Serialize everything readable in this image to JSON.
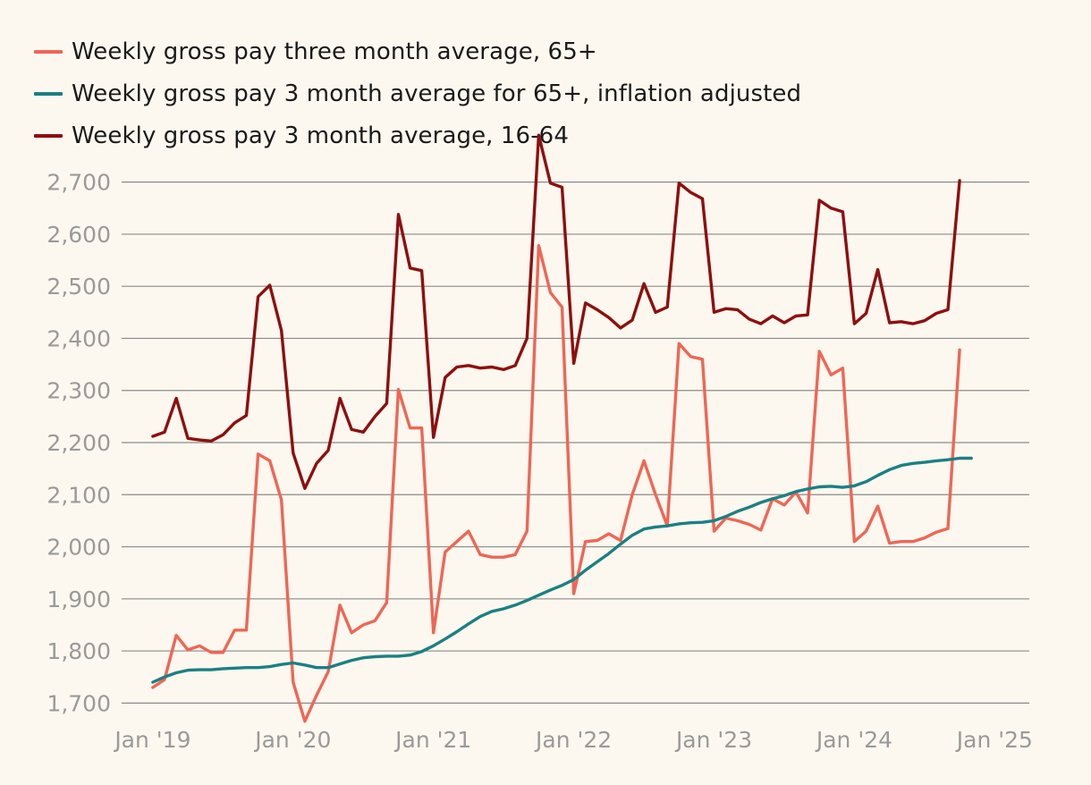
{
  "chart_data": {
    "type": "line",
    "title": "",
    "xlabel": "",
    "ylabel": "",
    "x_tick_labels": [
      "Jan '19",
      "Jan '20",
      "Jan '21",
      "Jan '22",
      "Jan '23",
      "Jan '24",
      "Jan '25"
    ],
    "x_tick_values": [
      2019,
      2020,
      2021,
      2022,
      2023,
      2024,
      2025
    ],
    "x_start": 2019.0,
    "x_step": 0.083333,
    "xlim": [
      2018.58,
      2025.24
    ],
    "y_ticks": [
      1700,
      1800,
      1900,
      2000,
      2100,
      2200,
      2300,
      2400,
      2500,
      2600,
      2700
    ],
    "y_tick_labels": [
      "1,700",
      "1,800",
      "1,900",
      "2,000",
      "2,100",
      "2,200",
      "2,300",
      "2,400",
      "2,500",
      "2,600",
      "2,700"
    ],
    "ylim": [
      1680,
      2720
    ],
    "grid": true,
    "legend_position": "top-left",
    "series": [
      {
        "name": "Weekly gross pay three month average, 65+",
        "color": "#ef6655",
        "values": [
          1730,
          1745,
          1830,
          1802,
          1810,
          1797,
          1797,
          1840,
          1840,
          2178,
          2165,
          2090,
          1740,
          1665,
          1715,
          1760,
          1888,
          1835,
          1850,
          1858,
          1893,
          2302,
          2228,
          2228,
          1835,
          1990,
          2010,
          2030,
          1985,
          1980,
          1980,
          1985,
          2030,
          2578,
          2488,
          2460,
          1910,
          2010,
          2012,
          2025,
          2012,
          2100,
          2165,
          2100,
          2040,
          2390,
          2365,
          2360,
          2030,
          2055,
          2050,
          2043,
          2032,
          2092,
          2080,
          2105,
          2065,
          2375,
          2330,
          2343,
          2010,
          2030,
          2078,
          2007,
          2010,
          2010,
          2017,
          2028,
          2035,
          2378
        ]
      },
      {
        "name": "Weekly gross pay 3 month average for 65+, inflation adjusted",
        "color": "#1b8083",
        "values": [
          1740,
          1750,
          1758,
          1763,
          1764,
          1764,
          1766,
          1767,
          1768,
          1768,
          1770,
          1774,
          1777,
          1773,
          1768,
          1768,
          1775,
          1782,
          1787,
          1789,
          1790,
          1790,
          1792,
          1799,
          1810,
          1823,
          1837,
          1852,
          1866,
          1876,
          1881,
          1888,
          1897,
          1907,
          1917,
          1926,
          1937,
          1955,
          1971,
          1987,
          2005,
          2022,
          2034,
          2038,
          2040,
          2044,
          2046,
          2047,
          2050,
          2058,
          2068,
          2076,
          2085,
          2092,
          2098,
          2106,
          2111,
          2115,
          2116,
          2114,
          2117,
          2125,
          2137,
          2148,
          2156,
          2160,
          2162,
          2165,
          2167,
          2170,
          2170
        ]
      },
      {
        "name": "Weekly gross pay 3 month average, 16-64",
        "color": "#8e0f0f",
        "values": [
          2212,
          2220,
          2285,
          2208,
          2205,
          2203,
          2215,
          2238,
          2252,
          2480,
          2502,
          2415,
          2180,
          2112,
          2160,
          2185,
          2285,
          2225,
          2220,
          2250,
          2275,
          2638,
          2535,
          2530,
          2210,
          2325,
          2345,
          2348,
          2343,
          2345,
          2340,
          2348,
          2400,
          2790,
          2698,
          2690,
          2352,
          2468,
          2455,
          2440,
          2420,
          2435,
          2505,
          2450,
          2460,
          2698,
          2680,
          2668,
          2450,
          2457,
          2455,
          2437,
          2428,
          2443,
          2430,
          2443,
          2445,
          2665,
          2650,
          2643,
          2428,
          2448,
          2532,
          2430,
          2432,
          2428,
          2434,
          2448,
          2455,
          2703
        ]
      }
    ]
  }
}
